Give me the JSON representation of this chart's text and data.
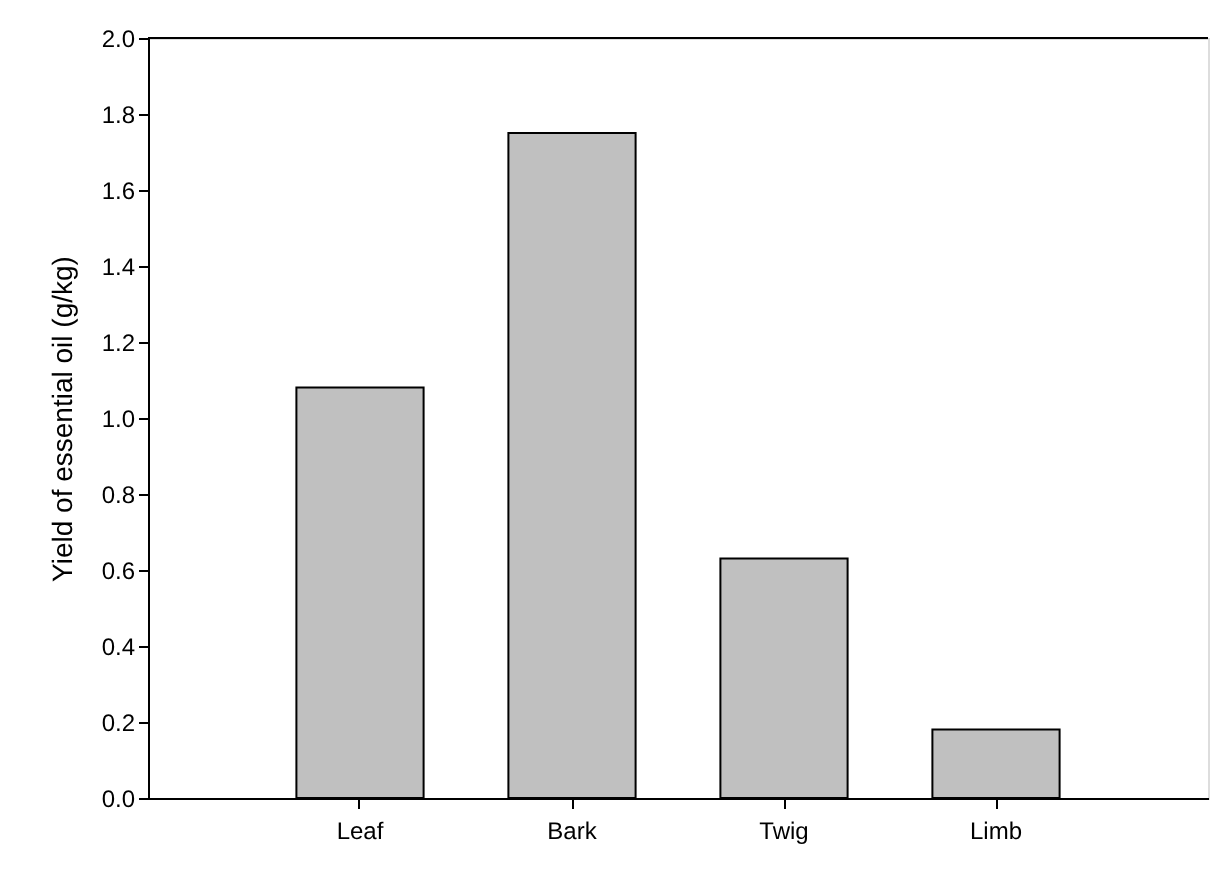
{
  "chart_data": {
    "type": "bar",
    "ylabel": "Yield of essential oil (g/kg)",
    "categories": [
      "Leaf",
      "Bark",
      "Twig",
      "Limb"
    ],
    "values": [
      1.08,
      1.75,
      0.63,
      0.18
    ],
    "color": "#c0c0c0",
    "ylim": [
      0,
      2.0
    ],
    "yticks": [
      {
        "value": 0,
        "label": "0.0"
      },
      0.2,
      0.4,
      0.6,
      0.8,
      {
        "value": 1,
        "label": "1.0"
      },
      1.2,
      1.4,
      1.6,
      1.8,
      {
        "value": 2,
        "label": "2.0"
      }
    ],
    "grid": false
  }
}
